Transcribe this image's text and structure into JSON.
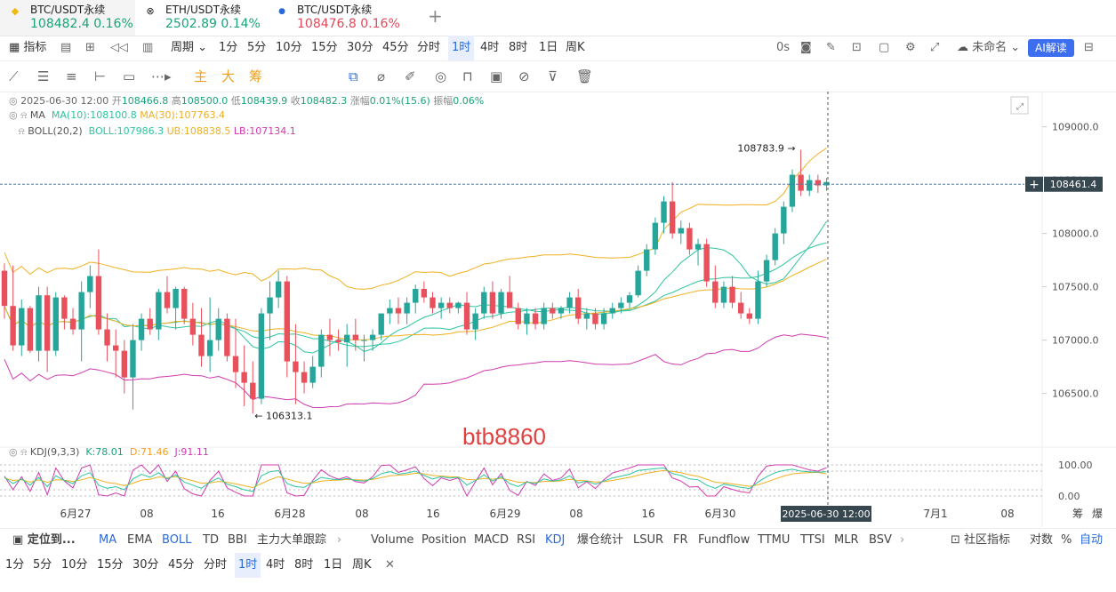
{
  "tabs": [
    {
      "name": "BTC/USDT永续",
      "price": "108482.4",
      "change": "0.16%",
      "color": "#1aa37a",
      "icon": "binance-icon"
    },
    {
      "name": "ETH/USDT永续",
      "price": "2502.89",
      "change": "0.14%",
      "color": "#1aa37a",
      "icon": "eth-icon"
    },
    {
      "name": "BTC/USDT永续",
      "price": "108476.8",
      "change": "0.16%",
      "color": "#e04a5a",
      "icon": "drop-icon"
    }
  ],
  "toolbar": {
    "indicator": "指标",
    "period": "周期",
    "intervals": [
      "1分",
      "5分",
      "10分",
      "15分",
      "30分",
      "45分",
      "分时",
      "1时",
      "4时",
      "8时",
      "1日",
      "周K"
    ],
    "selected_interval": "1时",
    "countdown": "0s",
    "template": "未命名",
    "ai": "AI解读"
  },
  "drawbar": {
    "brand": [
      "主",
      "大",
      "筹"
    ]
  },
  "legend": {
    "ohlc": {
      "time": "2025-06-30 12:00",
      "open_label": "开",
      "open": "108466.8",
      "high_label": "高",
      "high": "108500.0",
      "low_label": "低",
      "low": "108439.9",
      "close_label": "收",
      "close": "108482.3",
      "chg_label": "涨幅",
      "chg": "0.01%(15.6)",
      "amp_label": "振幅",
      "amp": "0.06%"
    },
    "ma": {
      "name": "MA",
      "ma10": "MA(10):108100.8",
      "ma30": "MA(30):107763.4"
    },
    "boll": {
      "name": "BOLL(20,2)",
      "mid": "BOLL:107986.3",
      "ub": "UB:108838.5",
      "lb": "LB:107134.1"
    },
    "kdj": {
      "name": "KDJ(9,3,3)",
      "k": "K:78.01",
      "d": "D:71.46",
      "j": "J:91.11"
    }
  },
  "chart_data": {
    "type": "candlestick",
    "y_ticks": [
      "109000.0",
      "108500.0",
      "108000.0",
      "107500.0",
      "107000.0",
      "106500.0"
    ],
    "y_range": [
      106230,
      109280
    ],
    "x_labels": [
      "6月27",
      "08",
      "16",
      "6月28",
      "08",
      "16",
      "6月29",
      "08",
      "16",
      "6月30",
      "08",
      "7月1",
      "08"
    ],
    "crosshair_time": "2025-06-30 12:00",
    "last_price": "108461.4",
    "max_label": "108783.9",
    "min_label": "106313.1",
    "kdj_ticks": [
      "100.00",
      "0.00"
    ],
    "colors": {
      "up": "#26a69a",
      "down": "#e8505b",
      "ma10": "#2ec4a0",
      "ma30": "#f0b020",
      "boll_mid": "#2ec4a0",
      "boll_ub": "#f0b020",
      "boll_lb": "#d03ab0"
    },
    "candles": [
      [
        107650,
        107720,
        107200,
        107320
      ],
      [
        107320,
        107700,
        106900,
        106950
      ],
      [
        106950,
        107380,
        106850,
        107300
      ],
      [
        107300,
        107320,
        106880,
        106900
      ],
      [
        106900,
        107500,
        106800,
        107420
      ],
      [
        107420,
        107500,
        106700,
        106900
      ],
      [
        106900,
        107450,
        106850,
        107400
      ],
      [
        107400,
        107420,
        107100,
        107200
      ],
      [
        107200,
        107300,
        107050,
        107100
      ],
      [
        107100,
        107550,
        106800,
        107450
      ],
      [
        107450,
        107700,
        107300,
        107600
      ],
      [
        107600,
        107850,
        107050,
        107100
      ],
      [
        107100,
        107250,
        106800,
        106950
      ],
      [
        106950,
        107100,
        106650,
        106900
      ],
      [
        106900,
        107000,
        106500,
        106650
      ],
      [
        106650,
        107150,
        106350,
        107000
      ],
      [
        107000,
        107250,
        106900,
        107200
      ],
      [
        107200,
        107300,
        107050,
        107100
      ],
      [
        107100,
        107480,
        107000,
        107450
      ],
      [
        107450,
        107600,
        107250,
        107300
      ],
      [
        107300,
        107500,
        107100,
        107480
      ],
      [
        107480,
        107500,
        107150,
        107200
      ],
      [
        107200,
        107350,
        106950,
        107050
      ],
      [
        107050,
        107300,
        106750,
        106850
      ],
      [
        106850,
        107400,
        106700,
        107000
      ],
      [
        107000,
        107300,
        106900,
        107200
      ],
      [
        107200,
        107250,
        106800,
        106850
      ],
      [
        106850,
        107200,
        106550,
        106700
      ],
      [
        106700,
        106950,
        106380,
        106600
      ],
      [
        106600,
        106800,
        106310,
        106450
      ],
      [
        106450,
        107300,
        106400,
        107250
      ],
      [
        107250,
        107550,
        107000,
        107400
      ],
      [
        107400,
        107650,
        107300,
        107550
      ],
      [
        107550,
        107600,
        106650,
        106800
      ],
      [
        106800,
        107150,
        106400,
        106700
      ],
      [
        106700,
        106800,
        106500,
        106600
      ],
      [
        106600,
        106850,
        106550,
        106750
      ],
      [
        106750,
        107100,
        106650,
        107050
      ],
      [
        107050,
        107200,
        106850,
        107000
      ],
      [
        107000,
        107100,
        106900,
        106980
      ],
      [
        106980,
        107150,
        106750,
        107050
      ],
      [
        107050,
        107200,
        106900,
        107000
      ],
      [
        107000,
        107050,
        106800,
        107000
      ],
      [
        107000,
        107100,
        106900,
        107050
      ],
      [
        107050,
        107250,
        107000,
        107250
      ],
      [
        107250,
        107380,
        107150,
        107300
      ],
      [
        107300,
        107400,
        107150,
        107250
      ],
      [
        107250,
        107400,
        107150,
        107350
      ],
      [
        107350,
        107520,
        107250,
        107480
      ],
      [
        107480,
        107550,
        107350,
        107400
      ],
      [
        107400,
        107450,
        107250,
        107300
      ],
      [
        107300,
        107400,
        107200,
        107350
      ],
      [
        107350,
        107400,
        107250,
        107300
      ],
      [
        107300,
        107360,
        107250,
        107350
      ],
      [
        107350,
        107450,
        107050,
        107100
      ],
      [
        107100,
        107300,
        107000,
        107250
      ],
      [
        107250,
        107500,
        107200,
        107450
      ],
      [
        107450,
        107550,
        107200,
        107250
      ],
      [
        107250,
        107480,
        107200,
        107450
      ],
      [
        107450,
        107600,
        107300,
        107300
      ],
      [
        107300,
        107350,
        107100,
        107150
      ],
      [
        107150,
        107300,
        107050,
        107250
      ],
      [
        107250,
        107300,
        107100,
        107150
      ],
      [
        107150,
        107350,
        107100,
        107300
      ],
      [
        107300,
        107350,
        107200,
        107250
      ],
      [
        107250,
        107320,
        107200,
        107300
      ],
      [
        107300,
        107450,
        107250,
        107400
      ],
      [
        107400,
        107480,
        107150,
        107200
      ],
      [
        107200,
        107300,
        107100,
        107250
      ],
      [
        107250,
        107300,
        107100,
        107150
      ],
      [
        107150,
        107300,
        107100,
        107250
      ],
      [
        107250,
        107350,
        107200,
        107300
      ],
      [
        107300,
        107400,
        107250,
        107350
      ],
      [
        107350,
        107450,
        107300,
        107420
      ],
      [
        107420,
        107700,
        107400,
        107650
      ],
      [
        107650,
        107900,
        107600,
        107850
      ],
      [
        107850,
        108150,
        107800,
        108100
      ],
      [
        108100,
        108350,
        108000,
        108300
      ],
      [
        108300,
        108480,
        107950,
        108000
      ],
      [
        108000,
        108120,
        107900,
        108050
      ],
      [
        108050,
        108100,
        107800,
        107850
      ],
      [
        107850,
        107950,
        107700,
        107900
      ],
      [
        107900,
        107950,
        107500,
        107550
      ],
      [
        107550,
        107700,
        107300,
        107350
      ],
      [
        107350,
        107550,
        107300,
        107500
      ],
      [
        107500,
        107600,
        107300,
        107350
      ],
      [
        107350,
        107450,
        107200,
        107250
      ],
      [
        107250,
        107300,
        107150,
        107200
      ],
      [
        107200,
        107650,
        107150,
        107550
      ],
      [
        107550,
        107800,
        107500,
        107750
      ],
      [
        107750,
        108050,
        107700,
        108000
      ],
      [
        108000,
        108300,
        107900,
        108250
      ],
      [
        108250,
        108600,
        108200,
        108550
      ],
      [
        108550,
        108784,
        108350,
        108400
      ],
      [
        108400,
        108550,
        108350,
        108500
      ],
      [
        108500,
        108550,
        108380,
        108450
      ],
      [
        108450,
        108520,
        108400,
        108482
      ]
    ],
    "kdj": [
      [
        60,
        58,
        64
      ],
      [
        40,
        50,
        20
      ],
      [
        55,
        52,
        62
      ],
      [
        35,
        45,
        15
      ],
      [
        60,
        52,
        76
      ],
      [
        30,
        44,
        4
      ],
      [
        65,
        52,
        90
      ],
      [
        50,
        51,
        48
      ],
      [
        40,
        47,
        26
      ],
      [
        65,
        52,
        90
      ],
      [
        75,
        60,
        100
      ],
      [
        35,
        52,
        4
      ],
      [
        25,
        43,
        0
      ],
      [
        30,
        40,
        10
      ],
      [
        20,
        33,
        0
      ],
      [
        55,
        41,
        83
      ],
      [
        70,
        51,
        100
      ],
      [
        60,
        54,
        72
      ],
      [
        75,
        61,
        100
      ],
      [
        55,
        59,
        47
      ],
      [
        68,
        62,
        80
      ],
      [
        45,
        56,
        23
      ],
      [
        35,
        49,
        7
      ],
      [
        25,
        41,
        0
      ],
      [
        45,
        42,
        50
      ],
      [
        58,
        47,
        80
      ],
      [
        38,
        44,
        26
      ],
      [
        30,
        39,
        12
      ],
      [
        20,
        33,
        0
      ],
      [
        15,
        27,
        0
      ],
      [
        65,
        40,
        100
      ],
      [
        78,
        52,
        100
      ],
      [
        82,
        62,
        100
      ],
      [
        40,
        55,
        10
      ],
      [
        30,
        47,
        0
      ],
      [
        28,
        41,
        2
      ],
      [
        45,
        42,
        50
      ],
      [
        60,
        48,
        84
      ],
      [
        55,
        50,
        65
      ],
      [
        52,
        51,
        54
      ],
      [
        56,
        53,
        62
      ],
      [
        50,
        52,
        46
      ],
      [
        48,
        51,
        42
      ],
      [
        56,
        53,
        62
      ],
      [
        72,
        59,
        98
      ],
      [
        78,
        65,
        100
      ],
      [
        70,
        67,
        76
      ],
      [
        74,
        69,
        84
      ],
      [
        80,
        73,
        94
      ],
      [
        66,
        71,
        56
      ],
      [
        55,
        66,
        33
      ],
      [
        62,
        64,
        58
      ],
      [
        58,
        62,
        50
      ],
      [
        60,
        61,
        58
      ],
      [
        35,
        53,
        0
      ],
      [
        50,
        52,
        46
      ],
      [
        68,
        57,
        90
      ],
      [
        48,
        54,
        36
      ],
      [
        62,
        57,
        72
      ],
      [
        40,
        51,
        18
      ],
      [
        30,
        44,
        2
      ],
      [
        45,
        44,
        47
      ],
      [
        40,
        43,
        34
      ],
      [
        55,
        47,
        71
      ],
      [
        48,
        47,
        50
      ],
      [
        52,
        49,
        58
      ],
      [
        65,
        54,
        87
      ],
      [
        42,
        50,
        26
      ],
      [
        48,
        49,
        46
      ],
      [
        38,
        45,
        24
      ],
      [
        48,
        46,
        52
      ],
      [
        58,
        50,
        74
      ],
      [
        64,
        55,
        82
      ],
      [
        70,
        60,
        90
      ],
      [
        82,
        67,
        100
      ],
      [
        85,
        73,
        100
      ],
      [
        88,
        78,
        100
      ],
      [
        90,
        82,
        100
      ],
      [
        72,
        79,
        58
      ],
      [
        66,
        75,
        48
      ],
      [
        55,
        68,
        29
      ],
      [
        52,
        63,
        30
      ],
      [
        35,
        54,
        0
      ],
      [
        25,
        44,
        0
      ],
      [
        38,
        42,
        30
      ],
      [
        33,
        39,
        21
      ],
      [
        28,
        35,
        14
      ],
      [
        24,
        31,
        10
      ],
      [
        45,
        36,
        63
      ],
      [
        62,
        45,
        96
      ],
      [
        75,
        55,
        100
      ],
      [
        82,
        64,
        100
      ],
      [
        86,
        71,
        100
      ],
      [
        80,
        74,
        92
      ],
      [
        78,
        75,
        84
      ],
      [
        77,
        76,
        80
      ],
      [
        78,
        71,
        91
      ]
    ]
  },
  "watermark": "btb8860",
  "bottom": {
    "locate": "定位到...",
    "indicators": [
      "MA",
      "EMA",
      "BOLL",
      "TD",
      "BBI",
      "主力大单跟踪",
      "Volume",
      "Position",
      "MACD",
      "RSI",
      "KDJ",
      "爆仓统计",
      "LSUR",
      "FR",
      "Fundflow",
      "TTMU",
      "TTSI",
      "MLR",
      "BSV"
    ],
    "community": "社区指标",
    "log": "对数",
    "pct": "%",
    "auto": "自动",
    "intervals": [
      "1分",
      "5分",
      "10分",
      "15分",
      "30分",
      "45分",
      "分时",
      "1时",
      "4时",
      "8时",
      "1日",
      "周K"
    ],
    "selected_interval": "1时",
    "x_axis_extra": [
      "筹",
      "爆"
    ]
  }
}
